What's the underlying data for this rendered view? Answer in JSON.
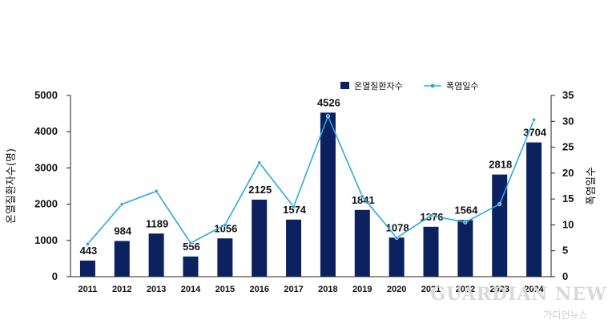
{
  "chart_data": {
    "type": "bar+line",
    "categories": [
      "2011",
      "2012",
      "2013",
      "2014",
      "2015",
      "2016",
      "2017",
      "2018",
      "2019",
      "2020",
      "2021",
      "2022",
      "2023",
      "2024"
    ],
    "series": [
      {
        "name": "온열질환자수",
        "type": "bar",
        "axis": "left",
        "color": "#0b2160",
        "values": [
          443,
          984,
          1189,
          556,
          1056,
          2125,
          1574,
          4526,
          1841,
          1078,
          1376,
          1564,
          2818,
          3704
        ],
        "labels": [
          "443",
          "984",
          "1189",
          "556",
          "1056",
          "2125",
          "1574",
          "4526",
          "1841",
          "1078",
          "1376",
          "1564",
          "2818",
          "3704"
        ]
      },
      {
        "name": "폭염일수",
        "type": "line",
        "axis": "right",
        "color": "#2aa9dd",
        "values": [
          6.3,
          14,
          16.5,
          6.5,
          10,
          22,
          13.5,
          31,
          15.5,
          7.5,
          11.8,
          10.5,
          14,
          30.3
        ]
      }
    ],
    "ylabel": "온열질환자수(명)",
    "y2label": "폭염일수",
    "ylim": [
      0,
      5000
    ],
    "y2lim": [
      0,
      35
    ],
    "yticks": [
      0,
      1000,
      2000,
      3000,
      4000,
      5000
    ],
    "y2ticks": [
      0,
      5,
      10,
      15,
      20,
      25,
      30,
      35
    ],
    "legend_position": "top-right",
    "grid": false
  },
  "watermark": {
    "main": "GUARDIAN NEWS",
    "sub": "가디언뉴스"
  }
}
